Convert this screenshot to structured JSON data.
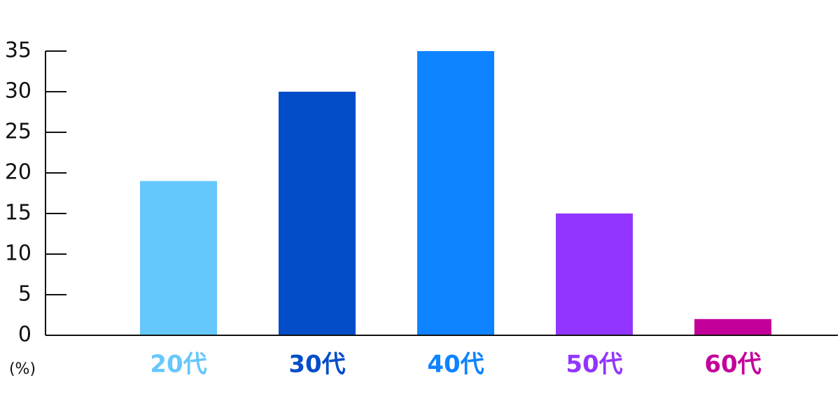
{
  "chart_data": {
    "type": "bar",
    "categories": [
      "20代",
      "30代",
      "40代",
      "50代",
      "60代"
    ],
    "values": [
      19,
      30,
      35,
      15,
      2
    ],
    "colors": [
      "#66c7fd",
      "#034dc8",
      "#0e83ff",
      "#9236ff",
      "#c4009a"
    ],
    "y_label": "(%)",
    "ylim": [
      0,
      35
    ],
    "yticks": [
      0,
      5,
      10,
      15,
      20,
      25,
      30,
      35
    ],
    "grid": false
  }
}
